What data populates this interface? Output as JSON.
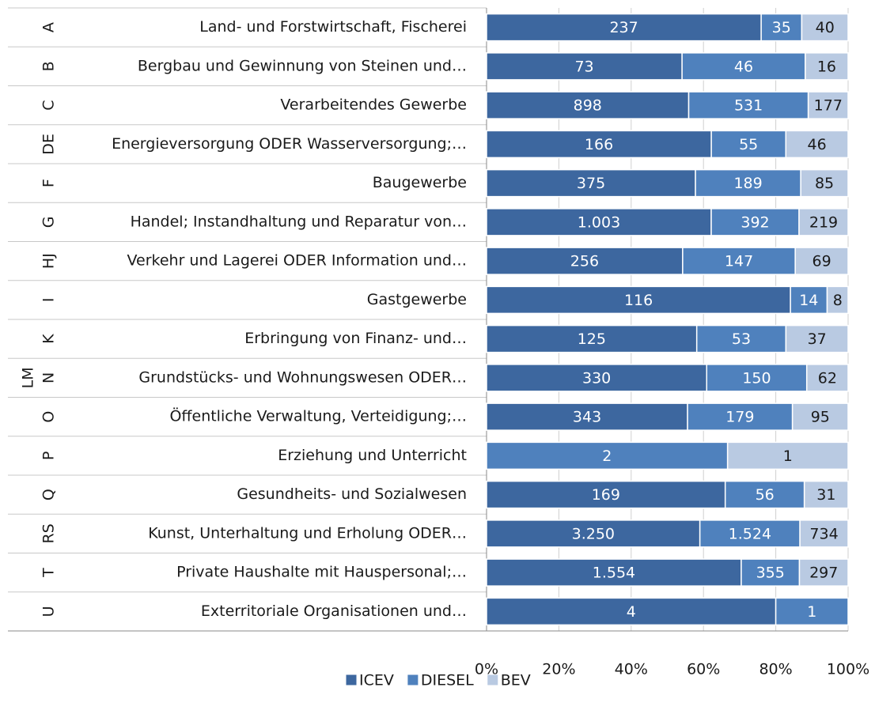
{
  "chart_data": {
    "type": "stacked_bar_100_horizontal",
    "codes": [
      "A",
      "B",
      "C",
      "DE",
      "F",
      "G",
      "HJ",
      "I",
      "K",
      "N",
      "O",
      "P",
      "Q",
      "RS",
      "T",
      "U"
    ],
    "outer_categories": [
      null,
      null,
      null,
      null,
      null,
      null,
      null,
      null,
      null,
      "LM",
      null,
      null,
      null,
      null,
      null,
      null
    ],
    "categories": [
      "Land- und Forstwirtschaft, Fischerei",
      "Bergbau und Gewinnung von Steinen und…",
      "Verarbeitendes Gewerbe",
      "Energieversorgung ODER Wasserversorgung;…",
      "Baugewerbe",
      "Handel; Instandhaltung und Reparatur von…",
      "Verkehr und Lagerei ODER Information und…",
      "Gastgewerbe",
      "Erbringung von Finanz- und…",
      "Grundstücks- und Wohnungswesen ODER…",
      "Öffentliche Verwaltung, Verteidigung;…",
      "Erziehung und Unterricht",
      "Gesundheits- und Sozialwesen",
      "Kunst, Unterhaltung und Erholung ODER…",
      "Private Haushalte mit Hauspersonal;…",
      "Exterritoriale Organisationen und…"
    ],
    "series": [
      {
        "name": "ICEV",
        "color": "#3d679f",
        "label_color": "#ffffff",
        "values": [
          237,
          73,
          898,
          166,
          375,
          1003,
          256,
          116,
          125,
          330,
          343,
          null,
          169,
          3250,
          1554,
          4
        ],
        "value_labels": [
          "237",
          "73",
          "898",
          "166",
          "375",
          "1.003",
          "256",
          "116",
          "125",
          "330",
          "343",
          null,
          "169",
          "3.250",
          "1.554",
          "4"
        ]
      },
      {
        "name": "DIESEL",
        "color": "#4f81bd",
        "label_color": "#ffffff",
        "values": [
          35,
          46,
          531,
          55,
          189,
          392,
          147,
          14,
          53,
          150,
          179,
          2,
          56,
          1524,
          355,
          1
        ],
        "value_labels": [
          "35",
          "46",
          "531",
          "55",
          "189",
          "392",
          "147",
          "14",
          "53",
          "150",
          "179",
          "2",
          "56",
          "1.524",
          "355",
          "1"
        ]
      },
      {
        "name": "BEV",
        "color": "#b9cae2",
        "label_color": "#1a1a1a",
        "values": [
          40,
          16,
          177,
          46,
          85,
          219,
          69,
          8,
          37,
          62,
          95,
          1,
          31,
          734,
          297,
          null
        ],
        "value_labels": [
          "40",
          "16",
          "177",
          "46",
          "85",
          "219",
          "69",
          "8",
          "37",
          "62",
          "95",
          "1",
          "31",
          "734",
          "297",
          null
        ]
      }
    ],
    "xlim": [
      0,
      100
    ],
    "xticks": [
      {
        "value": 0,
        "label": "0%"
      },
      {
        "value": 20,
        "label": "20%"
      },
      {
        "value": 40,
        "label": "40%"
      },
      {
        "value": 60,
        "label": "60%"
      },
      {
        "value": 80,
        "label": "80%"
      },
      {
        "value": 100,
        "label": "100%"
      }
    ],
    "grid": true,
    "legend": "bottom"
  }
}
